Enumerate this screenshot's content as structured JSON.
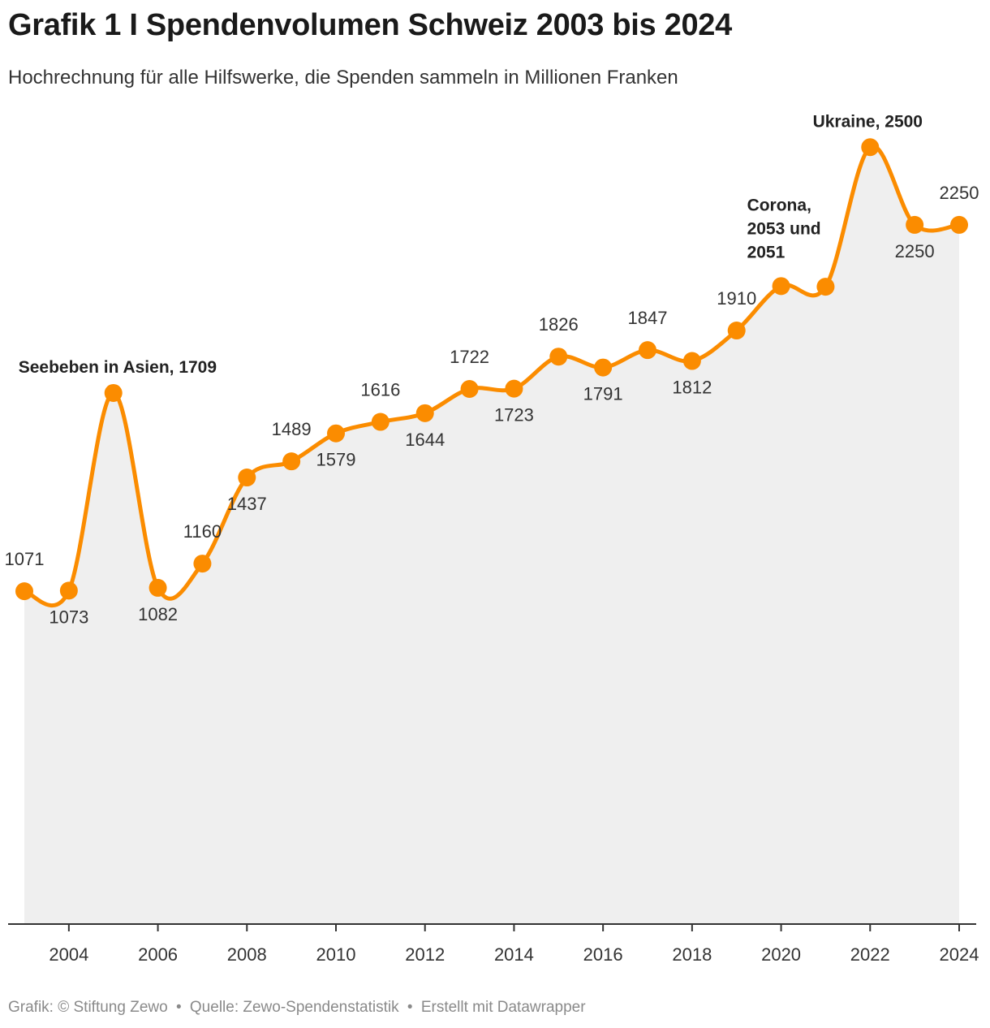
{
  "title": "Grafik 1 I Spendenvolumen Schweiz 2003 bis 2024",
  "subtitle": "Hochrechnung für alle Hilfswerke, die Spenden sammeln in Millionen Franken",
  "footer": {
    "credit": "Grafik: © Stiftung Zewo",
    "separator": "•",
    "source": "Quelle: Zewo-Spendenstatistik",
    "tool": "Erstellt mit Datawrapper"
  },
  "colors": {
    "line": "#fb8c00",
    "area": "#efefef",
    "axis": "#333333"
  },
  "chart_data": {
    "type": "line",
    "title": "Spendenvolumen Schweiz 2003 bis 2024",
    "xlabel": "",
    "ylabel": "Millionen Franken",
    "x": [
      2003,
      2004,
      2005,
      2006,
      2007,
      2008,
      2009,
      2010,
      2011,
      2012,
      2013,
      2014,
      2015,
      2016,
      2017,
      2018,
      2019,
      2020,
      2021,
      2022,
      2023,
      2024
    ],
    "xlim": [
      2003,
      2024
    ],
    "ylim": [
      0,
      2600
    ],
    "grid": false,
    "xticks": [
      "2004",
      "2006",
      "2008",
      "2010",
      "2012",
      "2014",
      "2016",
      "2018",
      "2020",
      "2022",
      "2024"
    ],
    "series": [
      {
        "name": "Spendenvolumen",
        "values": [
          1071,
          1073,
          1709,
          1082,
          1160,
          1437,
          1489,
          1579,
          1616,
          1644,
          1722,
          1723,
          1826,
          1791,
          1847,
          1812,
          1910,
          2053,
          2051,
          2500,
          2250,
          2250
        ]
      }
    ],
    "labels": [
      {
        "text": "1071",
        "pos": "above"
      },
      {
        "text": "1073",
        "pos": "below"
      },
      null,
      {
        "text": "1082",
        "pos": "below"
      },
      {
        "text": "1160",
        "pos": "above"
      },
      {
        "text": "1437",
        "pos": "below"
      },
      {
        "text": "1489",
        "pos": "above"
      },
      {
        "text": "1579",
        "pos": "below"
      },
      {
        "text": "1616",
        "pos": "above"
      },
      {
        "text": "1644",
        "pos": "below"
      },
      {
        "text": "1722",
        "pos": "above"
      },
      {
        "text": "1723",
        "pos": "below"
      },
      {
        "text": "1826",
        "pos": "above"
      },
      {
        "text": "1791",
        "pos": "below"
      },
      {
        "text": "1847",
        "pos": "above"
      },
      {
        "text": "1812",
        "pos": "below"
      },
      {
        "text": "1910",
        "pos": "above"
      },
      null,
      null,
      null,
      {
        "text": "2250",
        "pos": "below"
      },
      {
        "text": "2250",
        "pos": "above"
      }
    ],
    "annotations": [
      {
        "year": 2005,
        "lines": [
          "Seebeben in Asien, 1709"
        ]
      },
      {
        "year": 2020,
        "lines": [
          "Corona,",
          "2053 und",
          "2051"
        ]
      },
      {
        "year": 2022,
        "lines": [
          "Ukraine, 2500"
        ]
      }
    ]
  }
}
